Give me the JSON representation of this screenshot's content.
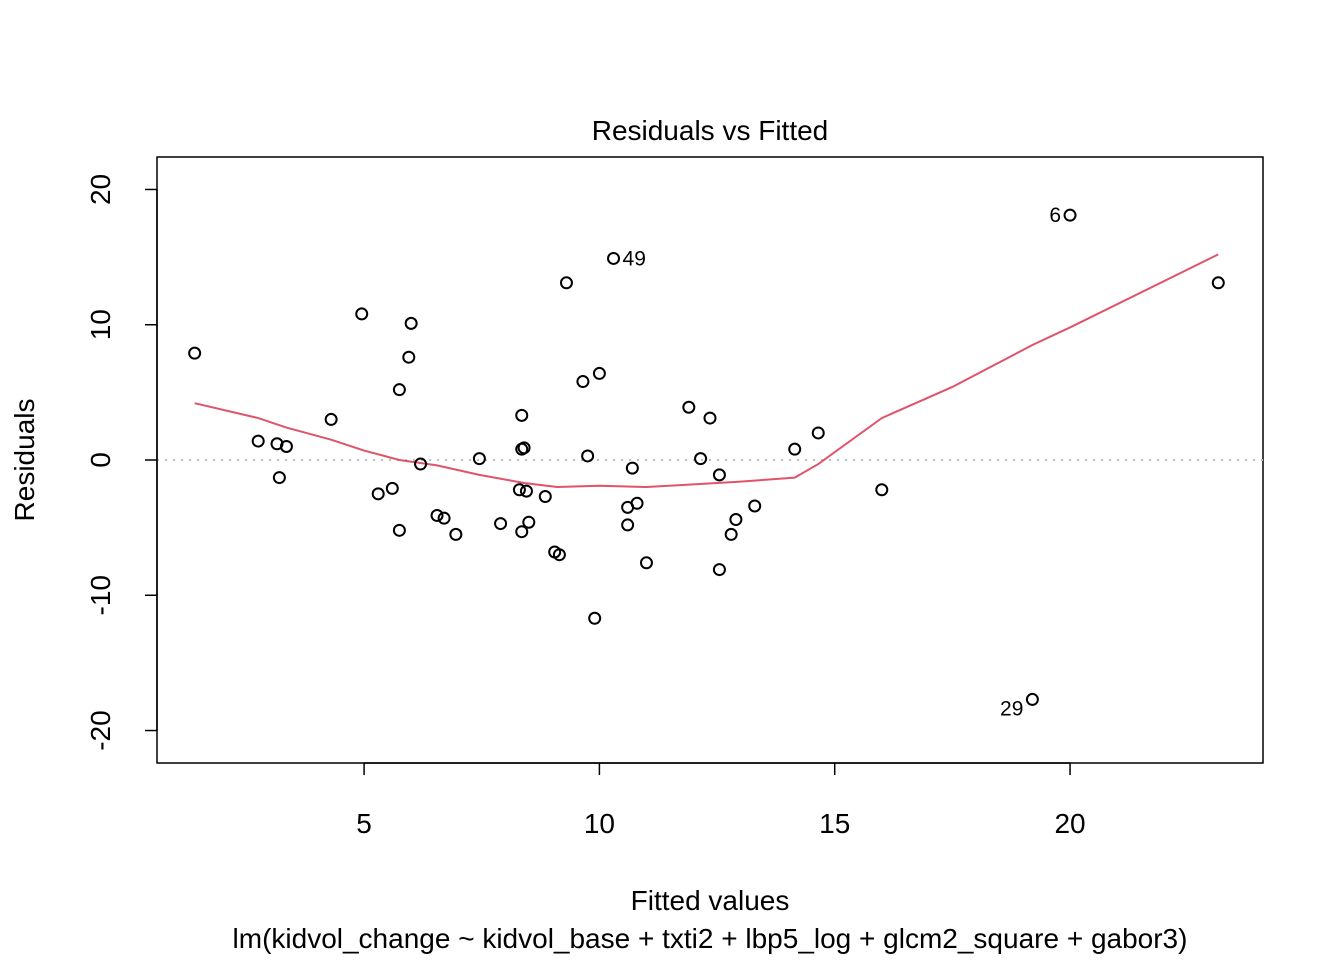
{
  "chart_data": {
    "type": "scatter",
    "title": "Residuals vs Fitted",
    "xlabel": "Fitted values",
    "ylabel": "Residuals",
    "subtitle": "lm(kidvol_change ~ kidvol_base + txti2 + lbp5_log + glcm2_square + gabor3)",
    "xlim": [
      0.6,
      24.1
    ],
    "ylim": [
      -22.4,
      22.4
    ],
    "x_ticks": [
      5,
      10,
      15,
      20
    ],
    "y_ticks": [
      -20,
      -10,
      0,
      10,
      20
    ],
    "grid": false,
    "colors": {
      "points": "#000000",
      "smooth": "#DF536B",
      "zero_line": "#BEBEBE"
    },
    "points": [
      {
        "x": 1.4,
        "y": 7.9
      },
      {
        "x": 2.75,
        "y": 1.4
      },
      {
        "x": 3.15,
        "y": 1.2
      },
      {
        "x": 3.2,
        "y": -1.3
      },
      {
        "x": 3.35,
        "y": 1.0
      },
      {
        "x": 4.3,
        "y": 3.0
      },
      {
        "x": 4.95,
        "y": 10.8
      },
      {
        "x": 5.3,
        "y": -2.5
      },
      {
        "x": 5.6,
        "y": -2.1
      },
      {
        "x": 5.75,
        "y": 5.2
      },
      {
        "x": 5.75,
        "y": -5.2
      },
      {
        "x": 5.95,
        "y": 7.6
      },
      {
        "x": 6.0,
        "y": 10.1
      },
      {
        "x": 6.2,
        "y": -0.3
      },
      {
        "x": 6.55,
        "y": -4.1
      },
      {
        "x": 6.7,
        "y": -4.3
      },
      {
        "x": 6.95,
        "y": -5.5
      },
      {
        "x": 7.45,
        "y": 0.1
      },
      {
        "x": 7.9,
        "y": -4.7
      },
      {
        "x": 8.3,
        "y": -2.2
      },
      {
        "x": 8.35,
        "y": -5.3
      },
      {
        "x": 8.35,
        "y": 0.8
      },
      {
        "x": 8.35,
        "y": 3.3
      },
      {
        "x": 8.4,
        "y": 0.9
      },
      {
        "x": 8.45,
        "y": -2.3
      },
      {
        "x": 8.5,
        "y": -4.6
      },
      {
        "x": 8.85,
        "y": -2.7
      },
      {
        "x": 9.05,
        "y": -6.8
      },
      {
        "x": 9.15,
        "y": -7.0
      },
      {
        "x": 9.3,
        "y": 13.1
      },
      {
        "x": 9.65,
        "y": 5.8
      },
      {
        "x": 9.75,
        "y": 0.3
      },
      {
        "x": 9.9,
        "y": -11.7
      },
      {
        "x": 10.0,
        "y": 6.4
      },
      {
        "x": 10.3,
        "y": 14.9
      },
      {
        "x": 10.6,
        "y": -4.8
      },
      {
        "x": 10.6,
        "y": -3.5
      },
      {
        "x": 10.7,
        "y": -0.6
      },
      {
        "x": 10.8,
        "y": -3.2
      },
      {
        "x": 11.0,
        "y": -7.6
      },
      {
        "x": 11.9,
        "y": 3.9
      },
      {
        "x": 12.15,
        "y": 0.1
      },
      {
        "x": 12.35,
        "y": 3.1
      },
      {
        "x": 12.55,
        "y": -1.1
      },
      {
        "x": 12.55,
        "y": -8.1
      },
      {
        "x": 12.8,
        "y": -5.5
      },
      {
        "x": 12.9,
        "y": -4.4
      },
      {
        "x": 13.3,
        "y": -3.4
      },
      {
        "x": 14.15,
        "y": 0.8
      },
      {
        "x": 14.65,
        "y": 2.0
      },
      {
        "x": 16.0,
        "y": -2.2
      },
      {
        "x": 19.2,
        "y": -17.7
      },
      {
        "x": 20.0,
        "y": 18.1
      },
      {
        "x": 23.15,
        "y": 13.1
      }
    ],
    "point_labels": [
      {
        "text": "49",
        "x": 10.3,
        "y": 14.9,
        "side": "right"
      },
      {
        "text": "6",
        "x": 20.0,
        "y": 18.1,
        "side": "left"
      },
      {
        "text": "29",
        "x": 19.2,
        "y": -17.7,
        "side": "left"
      }
    ],
    "smooth_line": [
      [
        1.4,
        4.2
      ],
      [
        2.75,
        3.1
      ],
      [
        3.35,
        2.4
      ],
      [
        4.3,
        1.5
      ],
      [
        5.0,
        0.7
      ],
      [
        5.75,
        0.0
      ],
      [
        6.55,
        -0.4
      ],
      [
        7.45,
        -1.1
      ],
      [
        8.4,
        -1.7
      ],
      [
        9.1,
        -2.0
      ],
      [
        10.0,
        -1.9
      ],
      [
        11.0,
        -2.0
      ],
      [
        12.0,
        -1.8
      ],
      [
        13.0,
        -1.6
      ],
      [
        14.15,
        -1.3
      ],
      [
        14.65,
        -0.3
      ],
      [
        16.0,
        3.1
      ],
      [
        17.5,
        5.4
      ],
      [
        19.2,
        8.5
      ],
      [
        20.0,
        9.8
      ],
      [
        23.15,
        15.2
      ]
    ]
  }
}
